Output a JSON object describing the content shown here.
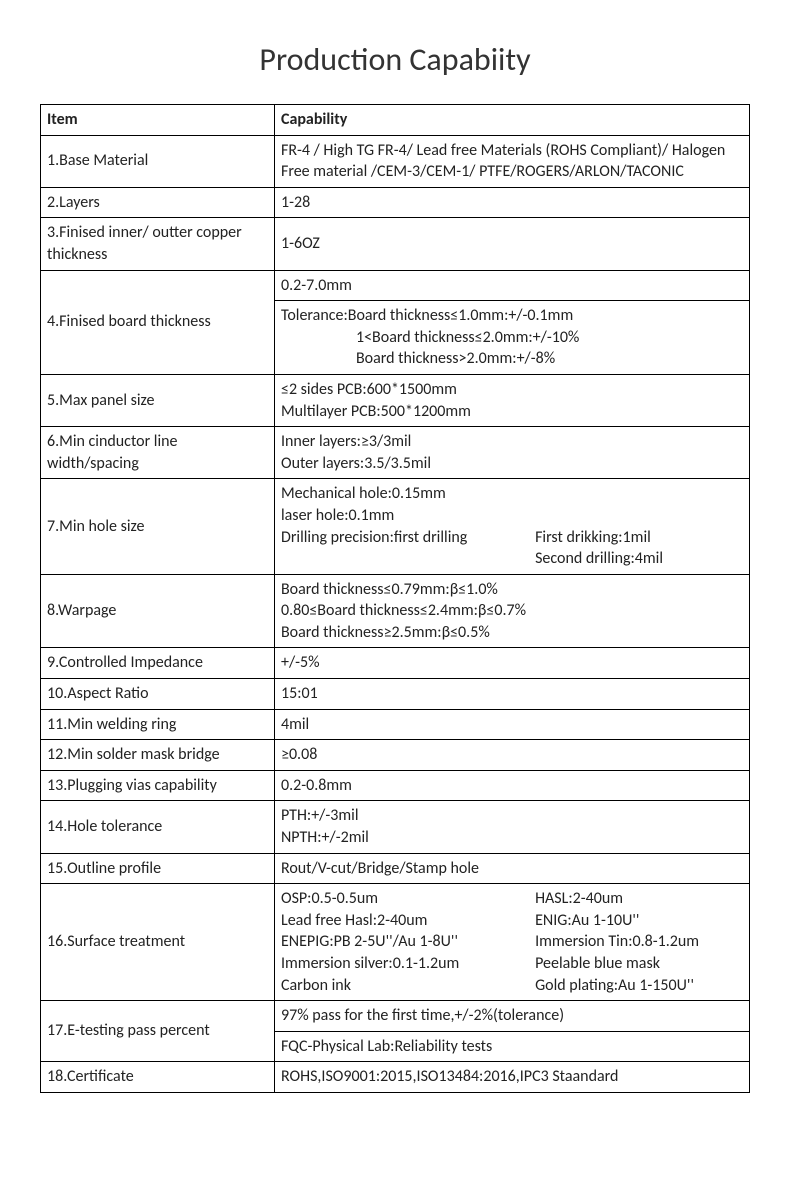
{
  "title": "Production Capabiity",
  "headers": {
    "item": "Item",
    "capability": "Capability"
  },
  "rows": {
    "r1": {
      "item": "1.Base Material",
      "cap": "FR-4 / High TG FR-4/ Lead free Materials (ROHS Compliant)/ Halogen Free material /CEM-3/CEM-1/ PTFE/ROGERS/ARLON/TACONIC"
    },
    "r2": {
      "item": "2.Layers",
      "cap": "1-28"
    },
    "r3": {
      "item": "3.Finised inner/ outter copper thickness",
      "cap": "1-6OZ"
    },
    "r4": {
      "item": "4.Finised board thickness",
      "capA": "0.2-7.0mm",
      "capB1": "Tolerance:Board thickness≤1.0mm:+/-0.1mm",
      "capB2": "1<Board thickness≤2.0mm:+/-10%",
      "capB3": "Board thickness>2.0mm:+/-8%"
    },
    "r5": {
      "item": "5.Max panel size",
      "l1": "≤2 sides PCB:600*1500mm",
      "l2": "Multilayer PCB:500*1200mm"
    },
    "r6": {
      "item": "6.Min cinductor line width/spacing",
      "l1": "Inner layers:≥3/3mil",
      "l2": "Outer layers:3.5/3.5mil"
    },
    "r7": {
      "item": "7.Min hole size",
      "l1": "Mechanical hole:0.15mm",
      "l2": "laser hole:0.1mm",
      "l3a": "Drilling precision:first drilling",
      "l3b": "First  drikking:1mil",
      "l4b": "Second drilling:4mil"
    },
    "r8": {
      "item": "8.Warpage",
      "l1": "Board thickness≤0.79mm:β≤1.0%",
      "l2": "0.80≤Board thickness≤2.4mm:β≤0.7%",
      "l3": "Board thickness≥2.5mm:β≤0.5%"
    },
    "r9": {
      "item": "9.Controlled Impedance",
      "cap": "+/-5%"
    },
    "r10": {
      "item": "10.Aspect Ratio",
      "cap": "15:01"
    },
    "r11": {
      "item": "11.Min welding ring",
      "cap": "4mil"
    },
    "r12": {
      "item": "12.Min solder mask bridge",
      "cap": "≥0.08"
    },
    "r13": {
      "item": "13.Plugging vias capability",
      "cap": "0.2-0.8mm"
    },
    "r14": {
      "item": "14.Hole tolerance",
      "l1": "PTH:+/-3mil",
      "l2": "NPTH:+/-2mil"
    },
    "r15": {
      "item": "15.Outline profile",
      "cap": "Rout/V-cut/Bridge/Stamp hole"
    },
    "r16": {
      "item": "16.Surface treatment",
      "a1": "OSP:0.5-0.5um",
      "b1": "HASL:2-40um",
      "a2": "Lead free Hasl:2-40um",
      "b2": "ENIG:Au 1-10U''",
      "a3": "ENEPIG:PB 2-5U''/Au 1-8U''",
      "b3": "Immersion Tin:0.8-1.2um",
      "a4": "Immersion silver:0.1-1.2um",
      "b4": "Peelable blue mask",
      "a5": "Carbon ink",
      "b5": "Gold plating:Au 1-150U''"
    },
    "r17": {
      "item": "17.E-testing pass percent",
      "capA": "97% pass for the first time,+/-2%(tolerance)",
      "capB": "FQC-Physical Lab:Reliability tests"
    },
    "r18": {
      "item": "18.Certificate",
      "cap": "ROHS,ISO9001:2015,ISO13484:2016,IPC3 Staandard"
    }
  }
}
